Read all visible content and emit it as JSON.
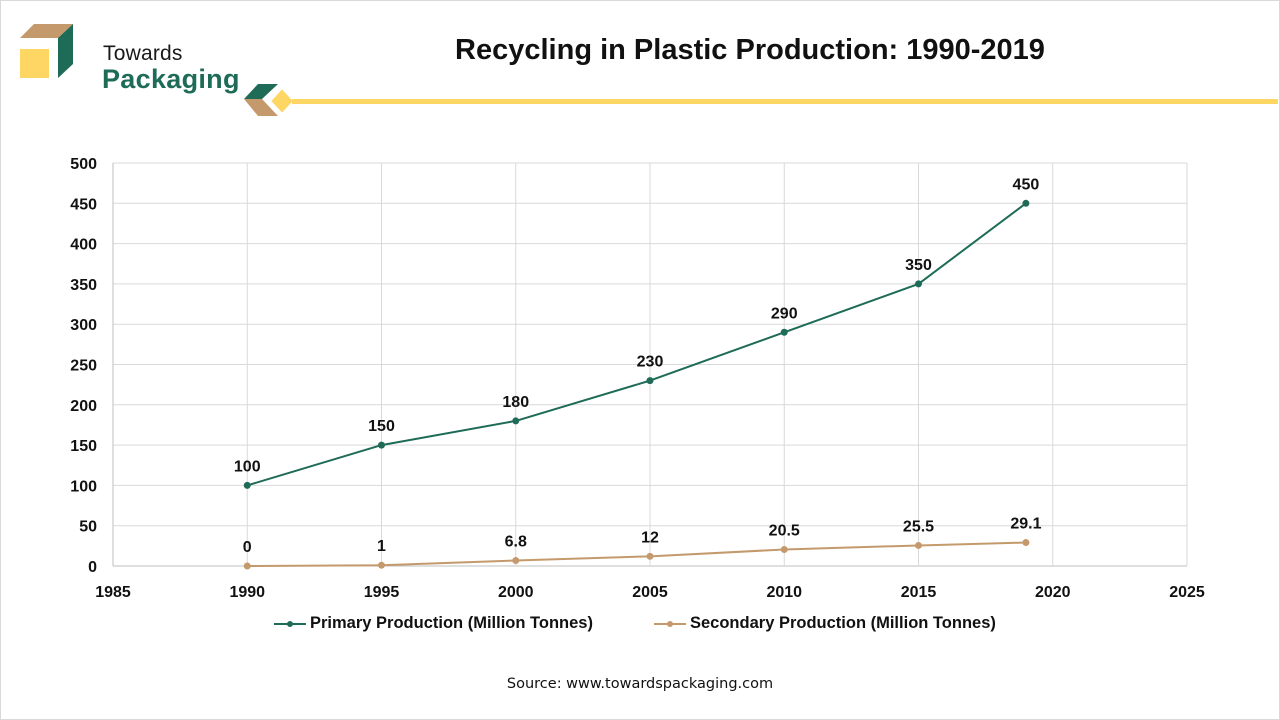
{
  "brand": {
    "line1": "Towards",
    "line2": "Packaging",
    "colors": {
      "green": "#1e6b57",
      "tan": "#c49a6c",
      "yellow": "#fdd663"
    }
  },
  "header": {
    "title": "Recycling in Plastic Production: 1990-2019"
  },
  "footer": {
    "source": "Source: www.towardspackaging.com"
  },
  "chart_data": {
    "type": "line",
    "title": "Recycling in Plastic Production: 1990-2019",
    "xlabel": "",
    "ylabel": "",
    "xlim": [
      1985,
      2025
    ],
    "ylim": [
      0,
      500
    ],
    "x_ticks": [
      1985,
      1990,
      1995,
      2000,
      2005,
      2010,
      2015,
      2020,
      2025
    ],
    "y_ticks": [
      0,
      50,
      100,
      150,
      200,
      250,
      300,
      350,
      400,
      450,
      500
    ],
    "grid": true,
    "legend_position": "bottom",
    "series": [
      {
        "name": "Primary Production (Million Tonnes)",
        "color": "#1e6b57",
        "x": [
          1990,
          1995,
          2000,
          2005,
          2010,
          2015,
          2019
        ],
        "values": [
          100,
          150,
          180,
          230,
          290,
          350,
          450
        ],
        "labels": [
          "100",
          "150",
          "180",
          "230",
          "290",
          "350",
          "450"
        ]
      },
      {
        "name": "Secondary Production (Million Tonnes)",
        "color": "#c49a6c",
        "x": [
          1990,
          1995,
          2000,
          2005,
          2010,
          2015,
          2019
        ],
        "values": [
          0,
          1,
          6.8,
          12,
          20.5,
          25.5,
          29.1
        ],
        "labels": [
          "0",
          "1",
          "6.8",
          "12",
          "20.5",
          "25.5",
          "29.1"
        ]
      }
    ]
  }
}
